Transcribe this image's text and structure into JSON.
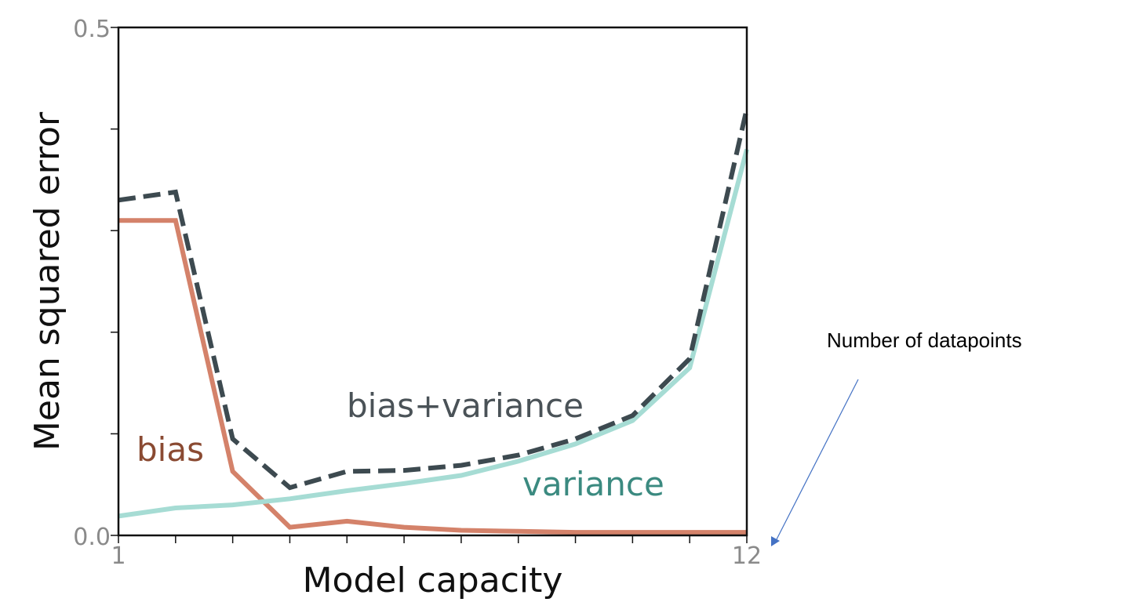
{
  "chart_data": {
    "type": "line",
    "xlabel": "Model capacity",
    "ylabel": "Mean squared error",
    "xlim": [
      1,
      12
    ],
    "ylim": [
      0,
      0.5
    ],
    "x_tick_labels": [
      "1",
      "12"
    ],
    "y_tick_labels": [
      "0.0",
      "0.5"
    ],
    "x": [
      1,
      2,
      3,
      4,
      5,
      6,
      7,
      8,
      9,
      10,
      11,
      12
    ],
    "grid": false,
    "legend": "none (series labeled inline)",
    "series": [
      {
        "name": "bias",
        "color": "#d4826a",
        "style": "solid",
        "label_color": "#8a4a32",
        "values": [
          0.31,
          0.31,
          0.063,
          0.008,
          0.014,
          0.008,
          0.005,
          0.004,
          0.003,
          0.003,
          0.003,
          0.003
        ]
      },
      {
        "name": "variance",
        "color": "#a6dcd4",
        "style": "solid",
        "label_color": "#3b8a80",
        "values": [
          0.019,
          0.027,
          0.03,
          0.036,
          0.044,
          0.051,
          0.059,
          0.073,
          0.09,
          0.113,
          0.165,
          0.38
        ]
      },
      {
        "name": "bias+variance",
        "color": "#3d4a50",
        "style": "dashed",
        "label_color": "#4a5257",
        "values": [
          0.33,
          0.338,
          0.095,
          0.047,
          0.063,
          0.064,
          0.069,
          0.079,
          0.095,
          0.118,
          0.174,
          0.42
        ]
      }
    ],
    "annotation": {
      "text": "Number of datapoints",
      "arrow_color": "#4472c4"
    }
  }
}
